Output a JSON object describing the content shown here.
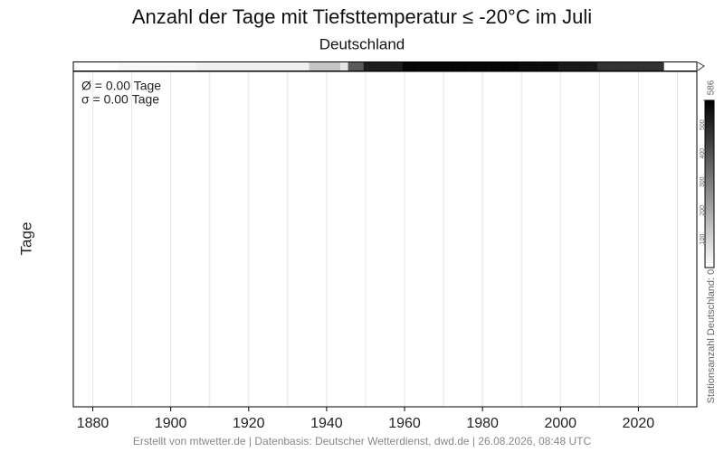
{
  "chart_data": {
    "type": "line",
    "title": "Anzahl der Tage mit Tiefsttemperatur ≤ -20°C im Juli",
    "subtitle": "Deutschland",
    "y_label": "Tage",
    "annotations": [
      "Ø = 0.00 Tage",
      "σ = 0.00 Tage"
    ],
    "footer": "Erstellt von mtwetter.de | Datenbasis: Deutscher Wetterdienst, dwd.de | 26.08.2026, 08:48 UTC",
    "series": [],
    "xlim": [
      1875,
      2035
    ],
    "xticks": [
      1880,
      1900,
      1920,
      1940,
      1960,
      1980,
      2000,
      2020
    ],
    "xgrid": [
      1880,
      1890,
      1900,
      1910,
      1920,
      1930,
      1940,
      1950,
      1960,
      1970,
      1980,
      1990,
      2000,
      2010,
      2020,
      2030
    ],
    "station_counts": {
      "x": [
        1887,
        1888,
        1889,
        1890,
        1891,
        1892,
        1893,
        1894,
        1895,
        1896,
        1897,
        1898,
        1899,
        1900,
        1901,
        1902,
        1903,
        1904,
        1905,
        1906,
        1907,
        1908,
        1909,
        1910,
        1911,
        1912,
        1913,
        1914,
        1915,
        1916,
        1917,
        1918,
        1919,
        1920,
        1921,
        1922,
        1923,
        1924,
        1925,
        1926,
        1927,
        1928,
        1929,
        1930,
        1931,
        1932,
        1933,
        1934,
        1935,
        1936,
        1937,
        1938,
        1939,
        1940,
        1941,
        1942,
        1943,
        1944,
        1945,
        1946,
        1947,
        1948,
        1949,
        1950,
        1951,
        1952,
        1953,
        1954,
        1955,
        1956,
        1957,
        1958,
        1959,
        1960,
        1961,
        1962,
        1963,
        1964,
        1965,
        1966,
        1967,
        1968,
        1969,
        1970,
        1971,
        1972,
        1973,
        1974,
        1975,
        1976,
        1977,
        1978,
        1979,
        1980,
        1981,
        1982,
        1983,
        1984,
        1985,
        1986,
        1987,
        1988,
        1989,
        1990,
        1991,
        1992,
        1993,
        1994,
        1995,
        1996,
        1997,
        1998,
        1999,
        2000,
        2001,
        2002,
        2003,
        2004,
        2005,
        2006,
        2007,
        2008,
        2009,
        2010,
        2011,
        2012,
        2013,
        2014,
        2015,
        2016,
        2017,
        2018,
        2019,
        2020,
        2021,
        2022,
        2023,
        2024,
        2025,
        2026
      ],
      "values": [
        15,
        15,
        15,
        15,
        15,
        15,
        15,
        15,
        15,
        15,
        15,
        15,
        15,
        15,
        15,
        15,
        15,
        15,
        15,
        15,
        35,
        35,
        35,
        35,
        35,
        35,
        35,
        35,
        35,
        35,
        35,
        35,
        35,
        35,
        35,
        35,
        35,
        35,
        35,
        35,
        35,
        35,
        35,
        35,
        35,
        35,
        35,
        35,
        35,
        130,
        130,
        130,
        130,
        130,
        130,
        130,
        130,
        60,
        60,
        380,
        380,
        380,
        380,
        520,
        520,
        520,
        520,
        520,
        520,
        520,
        520,
        520,
        520,
        575,
        575,
        575,
        575,
        575,
        575,
        575,
        575,
        575,
        575,
        575,
        575,
        575,
        575,
        575,
        575,
        575,
        575,
        575,
        575,
        575,
        575,
        575,
        575,
        575,
        575,
        575,
        575,
        575,
        575,
        560,
        560,
        560,
        560,
        560,
        560,
        560,
        560,
        560,
        560,
        530,
        530,
        530,
        530,
        530,
        530,
        530,
        530,
        530,
        530,
        470,
        470,
        470,
        470,
        470,
        470,
        470,
        470,
        470,
        470,
        470,
        470,
        470,
        470,
        470,
        470,
        470
      ]
    },
    "colorbar": {
      "label": "Stationsanzahl Deutschland: 0",
      "lim": [
        0,
        586
      ],
      "ticks": [
        100,
        200,
        300,
        400,
        500,
        586
      ]
    }
  }
}
